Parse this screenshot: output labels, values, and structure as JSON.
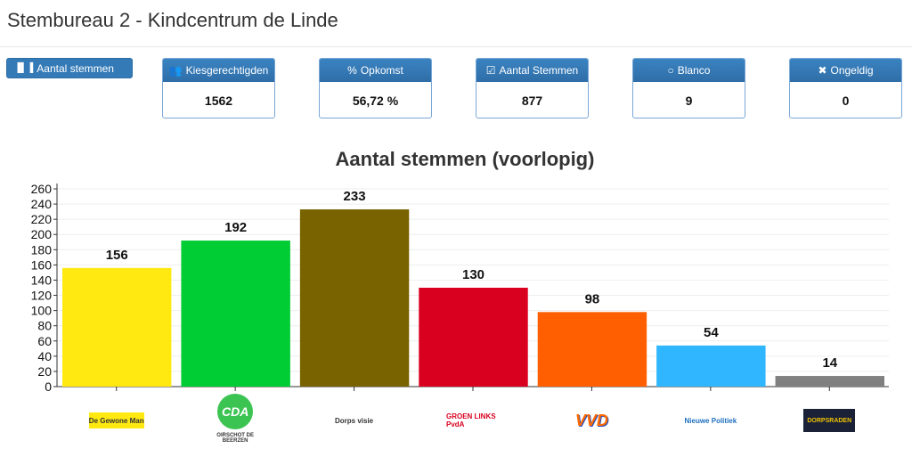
{
  "header": {
    "title": "Stembureau 2 - Kindcentrum de Linde"
  },
  "toolbar": {
    "button_label": "Aantal stemmen",
    "button_icon": "bar-chart-icon"
  },
  "cards": [
    {
      "label": "Kiesgerechtigden",
      "value": "1562",
      "icon": "users-icon",
      "glyph": "👥"
    },
    {
      "label": "Opkomst",
      "value": "56,72 %",
      "icon": "percent-icon",
      "glyph": "%"
    },
    {
      "label": "Aantal Stemmen",
      "value": "877",
      "icon": "check-square-icon",
      "glyph": "☑"
    },
    {
      "label": "Blanco",
      "value": "9",
      "icon": "circle-icon",
      "glyph": "○"
    },
    {
      "label": "Ongeldig",
      "value": "0",
      "icon": "close-icon",
      "glyph": "✖"
    }
  ],
  "chart_data": {
    "type": "bar",
    "title": "Aantal stemmen (voorlopig)",
    "categories": [
      "De Gewone Man",
      "CDA",
      "Dorpsvisie",
      "GroenLinks PvdA",
      "VVD",
      "Nieuwe Politiek",
      "Dorpsraden"
    ],
    "values": [
      156,
      192,
      233,
      130,
      98,
      54,
      14
    ],
    "colors": [
      "#ffe911",
      "#00cc33",
      "#786300",
      "#d9001f",
      "#ff5f00",
      "#30b6ff",
      "#808080"
    ],
    "ylim": [
      0,
      260
    ],
    "yticks": [
      0,
      20,
      40,
      60,
      80,
      100,
      120,
      140,
      160,
      180,
      200,
      220,
      240,
      260
    ],
    "grid": true,
    "xlabel": "",
    "ylabel": ""
  },
  "logos": [
    {
      "text": "De Gewone Man",
      "bg": "#ffe911",
      "fg": "#333"
    },
    {
      "text": "CDA",
      "sub": "OIRSCHOT DE BEERZEN",
      "bg": "#3cc453",
      "fg": "#fff"
    },
    {
      "text": "Dorps visie",
      "bg": "#fff",
      "fg": "#333"
    },
    {
      "text": "GROEN LINKS PvdA",
      "bg": "#fff",
      "fg": "#d9001f"
    },
    {
      "text": "VVD",
      "bg": "#fff",
      "fg": "#ff6a00"
    },
    {
      "text": "Nieuwe Politiek",
      "bg": "#fff",
      "fg": "#1e6fbf"
    },
    {
      "text": "DORPSRADEN",
      "bg": "#1b2238",
      "fg": "#f0c400"
    }
  ]
}
